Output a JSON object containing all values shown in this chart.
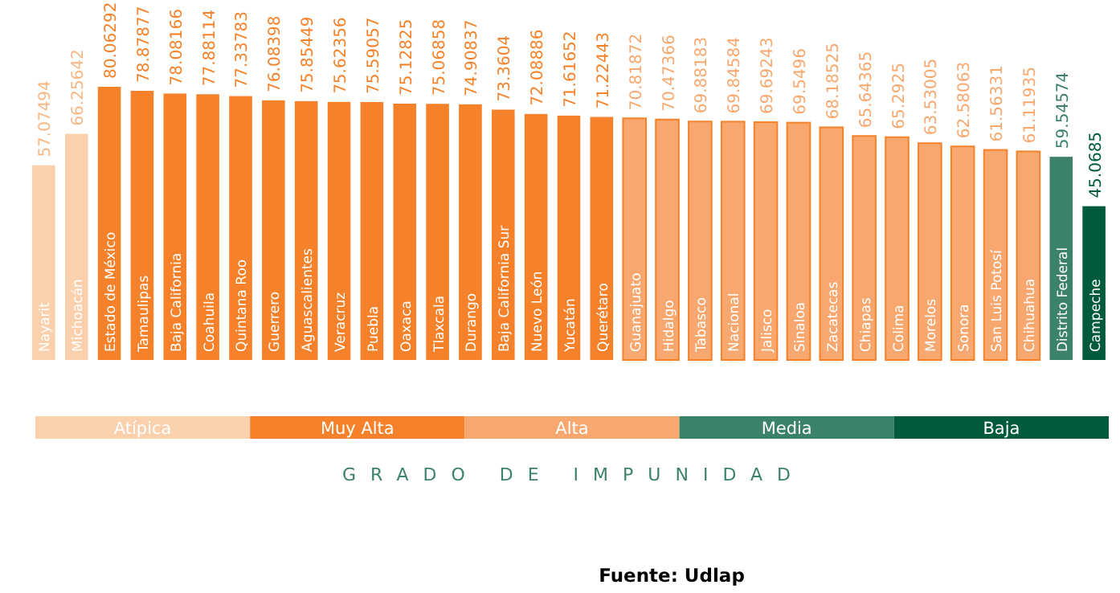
{
  "chart_data": {
    "type": "bar",
    "categories": [
      "Nayarit",
      "Michoacán",
      "Estado de México",
      "Tamaulipas",
      "Baja California",
      "Coahuila",
      "Quintana Roo",
      "Guerrero",
      "Aguascalientes",
      "Veracruz",
      "Puebla",
      "Oaxaca",
      "Tlaxcala",
      "Durango",
      "Baja California  Sur",
      "Nuevo León",
      "Yucatán",
      "Querétaro",
      "Guanajuato",
      "Hidalgo",
      "Tabasco",
      "Nacional",
      "Jalisco",
      "Sinaloa",
      "Zacatecas",
      "Chiapas",
      "Colima",
      "Morelos",
      "Sonora",
      "San Luis Potosí",
      "Chihuahua",
      "Distrito Federal",
      "Campeche"
    ],
    "series": [
      {
        "name": "Atípica",
        "color": "#fbd0ad",
        "values": [
          57.07494,
          66.25642,
          null,
          null,
          null,
          null,
          null,
          null,
          null,
          null,
          null,
          null,
          null,
          null,
          null,
          null,
          null,
          null,
          null,
          null,
          null,
          null,
          null,
          null,
          null,
          null,
          null,
          null,
          null,
          null,
          null,
          null,
          null
        ]
      },
      {
        "name": "Muy Alta",
        "color": "#f5822a",
        "values": [
          null,
          null,
          80.06292,
          78.87877,
          78.08166,
          77.88114,
          77.33783,
          76.08398,
          75.85449,
          75.62356,
          75.59057,
          75.12825,
          75.06858,
          74.90837,
          73.3604,
          72.08886,
          71.61652,
          71.22443,
          null,
          null,
          null,
          null,
          null,
          null,
          null,
          null,
          null,
          null,
          null,
          null,
          null,
          null,
          null
        ]
      },
      {
        "name": "Alta",
        "color": "#f8a86e",
        "values": [
          null,
          null,
          null,
          null,
          null,
          null,
          null,
          null,
          null,
          null,
          null,
          null,
          null,
          null,
          null,
          null,
          null,
          null,
          70.81872,
          70.47366,
          69.88183,
          69.84584,
          69.69243,
          69.5496,
          68.18525,
          65.64365,
          65.2925,
          63.53005,
          62.58063,
          61.56331,
          61.11935,
          null,
          null
        ]
      },
      {
        "name": "Media",
        "color": "#3b8269",
        "values": [
          null,
          null,
          null,
          null,
          null,
          null,
          null,
          null,
          null,
          null,
          null,
          null,
          null,
          null,
          null,
          null,
          null,
          null,
          null,
          null,
          null,
          null,
          null,
          null,
          null,
          null,
          null,
          null,
          null,
          null,
          null,
          59.54574,
          null
        ]
      },
      {
        "name": "Baja",
        "color": "#005b3a",
        "values": [
          null,
          null,
          null,
          null,
          null,
          null,
          null,
          null,
          null,
          null,
          null,
          null,
          null,
          null,
          null,
          null,
          null,
          null,
          null,
          null,
          null,
          null,
          null,
          null,
          null,
          null,
          null,
          null,
          null,
          null,
          null,
          null,
          45.0685
        ]
      }
    ],
    "relative": false,
    "data_labels": true,
    "legend": "bottom",
    "legend_title": "GRADO DE IMPUNIDAD",
    "annotations": [
      "Fuente: Udlap"
    ]
  }
}
